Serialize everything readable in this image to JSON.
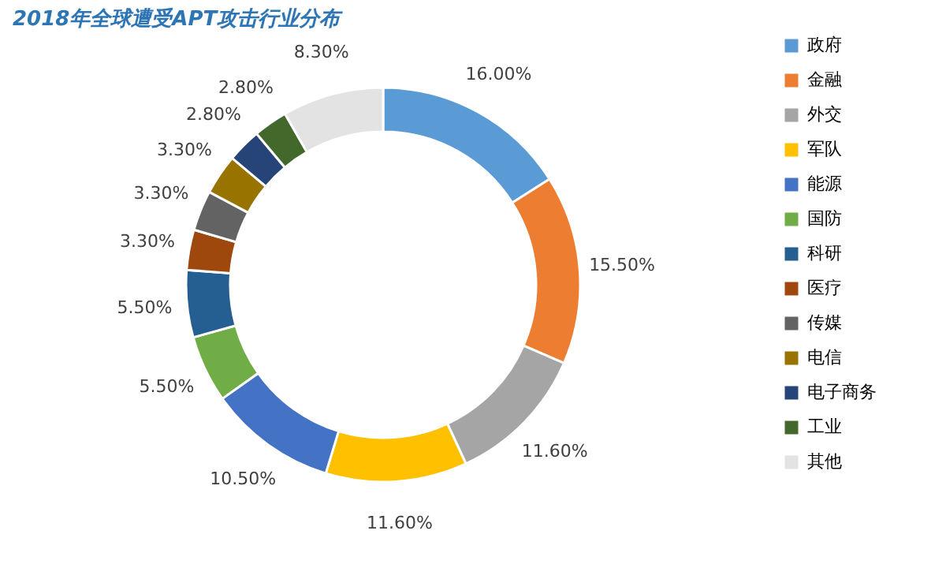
{
  "chart_data": {
    "type": "donut",
    "title": "2018年全球遭受APT攻击行业分布",
    "categories": [
      "政府",
      "金融",
      "外交",
      "军队",
      "能源",
      "国防",
      "科研",
      "医疗",
      "传媒",
      "电信",
      "电子商务",
      "工业",
      "其他"
    ],
    "values": [
      16.0,
      15.5,
      11.6,
      11.6,
      10.5,
      5.5,
      5.5,
      3.3,
      3.3,
      3.3,
      2.8,
      2.8,
      8.3
    ],
    "value_labels": [
      "16.00%",
      "15.50%",
      "11.60%",
      "11.60%",
      "10.50%",
      "5.50%",
      "5.50%",
      "3.30%",
      "3.30%",
      "3.30%",
      "2.80%",
      "2.80%",
      "8.30%"
    ],
    "colors": [
      "#5b9bd5",
      "#ed7d31",
      "#a5a5a5",
      "#ffc000",
      "#4472c4",
      "#70ad47",
      "#255e91",
      "#9e480e",
      "#636363",
      "#997300",
      "#264478",
      "#43682b",
      "#e4e3e3"
    ],
    "legend": "right"
  }
}
